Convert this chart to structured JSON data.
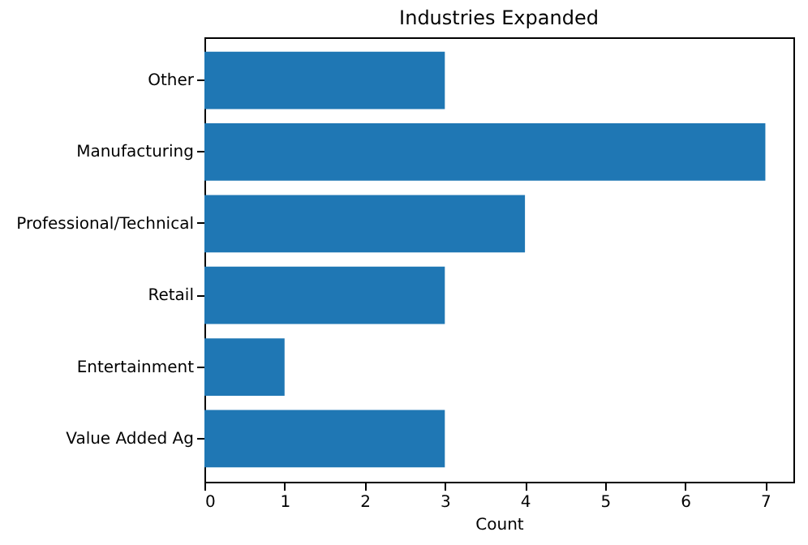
{
  "chart_data": {
    "type": "bar",
    "orientation": "horizontal",
    "title": "Industries Expanded",
    "xlabel": "Count",
    "categories": [
      "Other",
      "Manufacturing",
      "Professional/Technical",
      "Retail",
      "Entertainment",
      "Value Added Ag"
    ],
    "values": [
      3,
      7,
      4,
      3,
      1,
      3
    ],
    "color": "#1f77b4",
    "xlim": [
      0,
      7.35
    ],
    "xticks": [
      0,
      1,
      2,
      3,
      4,
      5,
      6,
      7
    ],
    "grid": false
  }
}
